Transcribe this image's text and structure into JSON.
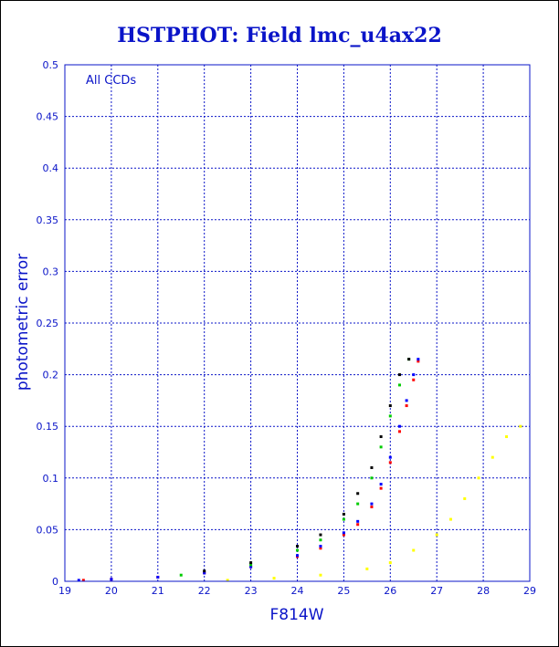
{
  "chart_data": {
    "type": "scatter",
    "title": "HSTPHOT: Field lmc_u4ax22",
    "xlabel": "F814W",
    "ylabel": "photometric error",
    "annotation": "All CCDs",
    "xlim": [
      19,
      29
    ],
    "ylim": [
      0,
      0.5
    ],
    "xticks": [
      "19",
      "20",
      "21",
      "22",
      "23",
      "24",
      "25",
      "26",
      "27",
      "28",
      "29"
    ],
    "yticks": [
      "0",
      "0.05",
      "0.1",
      "0.15",
      "0.2",
      "0.25",
      "0.3",
      "0.35",
      "0.4",
      "0.45",
      "0.5"
    ],
    "grid": true,
    "series": [
      {
        "color": "#ff0000",
        "values": [
          [
            19.4,
            0.001
          ],
          [
            20.0,
            0.002
          ],
          [
            21.0,
            0.004
          ],
          [
            22.0,
            0.008
          ],
          [
            23.0,
            0.014
          ],
          [
            24.0,
            0.024
          ],
          [
            24.5,
            0.032
          ],
          [
            25.0,
            0.045
          ],
          [
            25.3,
            0.055
          ],
          [
            25.6,
            0.072
          ],
          [
            25.8,
            0.09
          ],
          [
            26.0,
            0.115
          ],
          [
            26.2,
            0.145
          ],
          [
            26.35,
            0.17
          ],
          [
            26.5,
            0.195
          ],
          [
            26.6,
            0.213
          ]
        ]
      },
      {
        "color": "#0000ff",
        "values": [
          [
            19.3,
            0.001
          ],
          [
            20.0,
            0.002
          ],
          [
            21.0,
            0.004
          ],
          [
            22.0,
            0.008
          ],
          [
            23.0,
            0.014
          ],
          [
            24.0,
            0.025
          ],
          [
            24.5,
            0.034
          ],
          [
            25.0,
            0.047
          ],
          [
            25.3,
            0.058
          ],
          [
            25.6,
            0.075
          ],
          [
            25.8,
            0.094
          ],
          [
            26.0,
            0.12
          ],
          [
            26.2,
            0.15
          ],
          [
            26.35,
            0.175
          ],
          [
            26.5,
            0.2
          ],
          [
            26.6,
            0.215
          ]
        ]
      },
      {
        "color": "#00cc00",
        "values": [
          [
            21.5,
            0.006
          ],
          [
            23.0,
            0.016
          ],
          [
            24.0,
            0.03
          ],
          [
            24.5,
            0.04
          ],
          [
            25.0,
            0.06
          ],
          [
            25.3,
            0.075
          ],
          [
            25.6,
            0.1
          ],
          [
            25.8,
            0.13
          ],
          [
            26.0,
            0.16
          ],
          [
            26.2,
            0.19
          ],
          [
            26.4,
            0.215
          ]
        ]
      },
      {
        "color": "#000000",
        "values": [
          [
            22.0,
            0.01
          ],
          [
            23.0,
            0.018
          ],
          [
            24.0,
            0.034
          ],
          [
            24.5,
            0.045
          ],
          [
            25.0,
            0.065
          ],
          [
            25.3,
            0.085
          ],
          [
            25.6,
            0.11
          ],
          [
            25.8,
            0.14
          ],
          [
            26.0,
            0.17
          ],
          [
            26.2,
            0.2
          ],
          [
            26.4,
            0.215
          ]
        ]
      },
      {
        "color": "#ffff00",
        "values": [
          [
            22.5,
            0.001
          ],
          [
            23.5,
            0.003
          ],
          [
            24.5,
            0.006
          ],
          [
            25.5,
            0.012
          ],
          [
            26.0,
            0.018
          ],
          [
            26.5,
            0.03
          ],
          [
            27.0,
            0.045
          ],
          [
            27.3,
            0.06
          ],
          [
            27.6,
            0.08
          ],
          [
            27.9,
            0.1
          ],
          [
            28.2,
            0.12
          ],
          [
            28.5,
            0.14
          ],
          [
            28.8,
            0.15
          ]
        ]
      }
    ]
  }
}
